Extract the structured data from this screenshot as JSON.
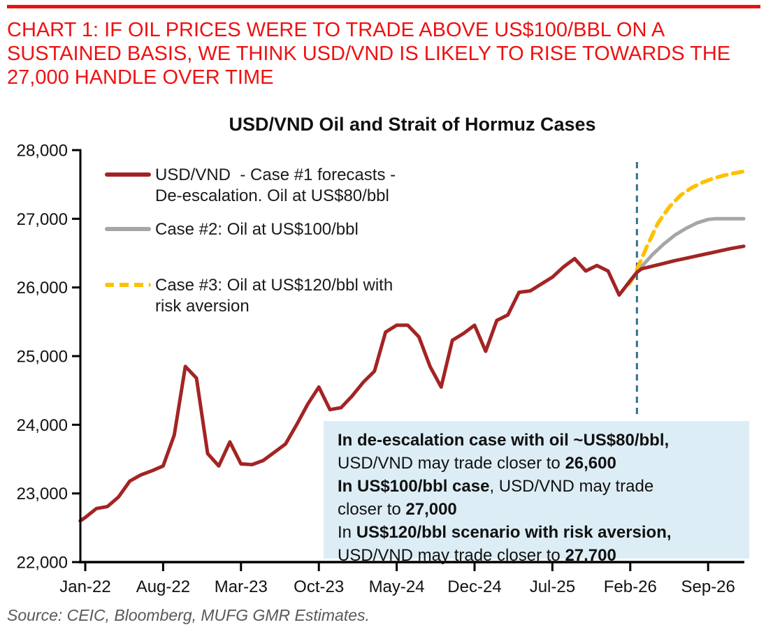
{
  "colors": {
    "headline_red": "#EE1111",
    "line_red": "#A32424",
    "line_gray": "#A6A6A6",
    "line_yellow": "#FFC000",
    "divider_blue": "#31708F",
    "note_bg": "#DDEDF6",
    "axis": "#000000",
    "tick_text": "#111111",
    "source_gray": "#595959"
  },
  "header": {
    "headline": "CHART 1: IF OIL PRICES WERE TO TRADE ABOVE US$100/BBL ON A\nSUSTAINED BASIS, WE THINK USD/VND IS LIKELY TO RISE TOWARDS THE\n27,000 HANDLE OVER TIME"
  },
  "legend": [
    {
      "label": "USD/VND  - Case #1 forecasts -\nDe-escalation. Oil at US$80/bbl",
      "color": "#A32424",
      "dash": false
    },
    {
      "label": "Case #2: Oil at US$100/bbl",
      "color": "#A6A6A6",
      "dash": false
    },
    {
      "label": "Case #3: Oil at US$120/bbl with\nrisk aversion",
      "color": "#FFC000",
      "dash": true
    }
  ],
  "note": {
    "lines": [
      [
        {
          "t": "In de-escalation case with oil ~US$80/bbl,",
          "b": true
        }
      ],
      [
        {
          "t": "USD/VND may trade closer to ",
          "b": false
        },
        {
          "t": "26,600",
          "b": true
        }
      ],
      [
        {
          "t": "In US$100/bbl case",
          "b": true
        },
        {
          "t": ", USD/VND may trade",
          "b": false
        }
      ],
      [
        {
          "t": "closer to ",
          "b": false
        },
        {
          "t": "27,000",
          "b": true
        }
      ],
      [
        {
          "t": "In ",
          "b": false
        },
        {
          "t": "US$120/bbl scenario with risk aversion,",
          "b": true
        }
      ],
      [
        {
          "t": "USD/VND may trade closer to ",
          "b": false
        },
        {
          "t": "27,700",
          "b": true
        }
      ]
    ]
  },
  "source": "Source: CEIC, Bloomberg, MUFG GMR Estimates.",
  "chart_data": {
    "type": "line",
    "title": "USD/VND Oil and Strait of Hormuz Cases",
    "xlabel": "",
    "ylabel": "USD/VND",
    "ylim": [
      22000,
      28000
    ],
    "y_ticks": [
      22000,
      23000,
      24000,
      25000,
      26000,
      27000,
      28000
    ],
    "y_tick_labels": [
      "22,000",
      "23,000",
      "24,000",
      "25,000",
      "26,000",
      "27,000",
      "28,000"
    ],
    "x_tick_labels": [
      "Jan-22",
      "Aug-22",
      "Mar-23",
      "Oct-23",
      "May-24",
      "Dec-24",
      "Jul-25",
      "Feb-26",
      "Sep-26"
    ],
    "x_tick_month_index": [
      0,
      7,
      14,
      21,
      28,
      35,
      42,
      49,
      56
    ],
    "x_range_months": [
      0,
      59.2
    ],
    "grid": false,
    "legend_position": "upper-left-inside",
    "forecast_divider_month": 49.6,
    "series": [
      {
        "name": "USD/VND history (actual)",
        "color": "#A32424",
        "style": "solid",
        "dates": [
          "Jan-22",
          "Feb-22",
          "Mar-22",
          "Apr-22",
          "May-22",
          "Jun-22",
          "Jul-22",
          "Aug-22",
          "Sep-22",
          "Oct-22",
          "Nov-22",
          "Dec-22",
          "Jan-23",
          "Feb-23",
          "Mar-23",
          "Apr-23",
          "May-23",
          "Jun-23",
          "Jul-23",
          "Aug-23",
          "Sep-23",
          "Oct-23",
          "Nov-23",
          "Dec-23",
          "Jan-24",
          "Feb-24",
          "Mar-24",
          "Apr-24",
          "May-24",
          "Jun-24",
          "Jul-24",
          "Aug-24",
          "Sep-24",
          "Oct-24",
          "Nov-24",
          "Dec-24",
          "Jan-25",
          "Feb-25",
          "Mar-25",
          "Apr-25",
          "May-25",
          "Jun-25",
          "Jul-25",
          "Aug-25",
          "Sep-25",
          "Oct-25",
          "Nov-25",
          "Dec-25",
          "Jan-26",
          "Feb-26"
        ],
        "points": [
          [
            -0.45,
            22600
          ],
          [
            0,
            22650
          ],
          [
            1,
            22780
          ],
          [
            2,
            22810
          ],
          [
            3,
            22950
          ],
          [
            4,
            23180
          ],
          [
            5,
            23270
          ],
          [
            6,
            23330
          ],
          [
            7,
            23400
          ],
          [
            8,
            23850
          ],
          [
            9,
            24850
          ],
          [
            10,
            24680
          ],
          [
            11,
            23580
          ],
          [
            12,
            23400
          ],
          [
            13,
            23750
          ],
          [
            14,
            23430
          ],
          [
            15,
            23420
          ],
          [
            16,
            23480
          ],
          [
            17,
            23600
          ],
          [
            18,
            23720
          ],
          [
            19,
            24000
          ],
          [
            20,
            24300
          ],
          [
            21,
            24550
          ],
          [
            22,
            24220
          ],
          [
            23,
            24250
          ],
          [
            24,
            24420
          ],
          [
            25,
            24620
          ],
          [
            26,
            24780
          ],
          [
            27,
            25350
          ],
          [
            28,
            25450
          ],
          [
            29,
            25450
          ],
          [
            30,
            25280
          ],
          [
            31,
            24850
          ],
          [
            32,
            24550
          ],
          [
            33,
            25230
          ],
          [
            34,
            25330
          ],
          [
            35,
            25450
          ],
          [
            36,
            25070
          ],
          [
            37,
            25520
          ],
          [
            38,
            25600
          ],
          [
            39,
            25930
          ],
          [
            40,
            25950
          ],
          [
            41,
            26050
          ],
          [
            42,
            26150
          ],
          [
            43,
            26300
          ],
          [
            44,
            26420
          ],
          [
            45,
            26240
          ],
          [
            46,
            26320
          ],
          [
            47,
            26240
          ],
          [
            48,
            25890
          ],
          [
            49,
            26100
          ],
          [
            49.6,
            26220
          ]
        ]
      },
      {
        "name": "Case #1 forecast - De-escalation. Oil at US$80/bbl (ends ~26,600)",
        "color": "#A32424",
        "style": "solid",
        "points": [
          [
            49.6,
            26220
          ],
          [
            50,
            26270
          ],
          [
            51,
            26310
          ],
          [
            52,
            26350
          ],
          [
            53,
            26390
          ],
          [
            54,
            26425
          ],
          [
            55,
            26460
          ],
          [
            56,
            26495
          ],
          [
            57,
            26530
          ],
          [
            58,
            26565
          ],
          [
            59.2,
            26600
          ]
        ]
      },
      {
        "name": "Case #2: Oil at US$100/bbl (ends ~27,000)",
        "color": "#A6A6A6",
        "style": "solid",
        "points": [
          [
            49.6,
            26220
          ],
          [
            50,
            26300
          ],
          [
            51,
            26480
          ],
          [
            52,
            26630
          ],
          [
            53,
            26760
          ],
          [
            54,
            26860
          ],
          [
            55,
            26940
          ],
          [
            56,
            26990
          ],
          [
            56.6,
            27000
          ],
          [
            59.2,
            27000
          ]
        ]
      },
      {
        "name": "Case #3: Oil at US$120/bbl with risk aversion (ends ~27,700)",
        "color": "#FFC000",
        "style": "dashed",
        "points": [
          [
            48.9,
            26050
          ],
          [
            49.3,
            26150
          ],
          [
            49.6,
            26260
          ],
          [
            50.5,
            26600
          ],
          [
            51.5,
            26940
          ],
          [
            52.5,
            27170
          ],
          [
            53.5,
            27340
          ],
          [
            54.5,
            27450
          ],
          [
            55.5,
            27530
          ],
          [
            56.5,
            27590
          ],
          [
            57.5,
            27635
          ],
          [
            58.4,
            27665
          ],
          [
            59.2,
            27690
          ]
        ]
      }
    ]
  }
}
